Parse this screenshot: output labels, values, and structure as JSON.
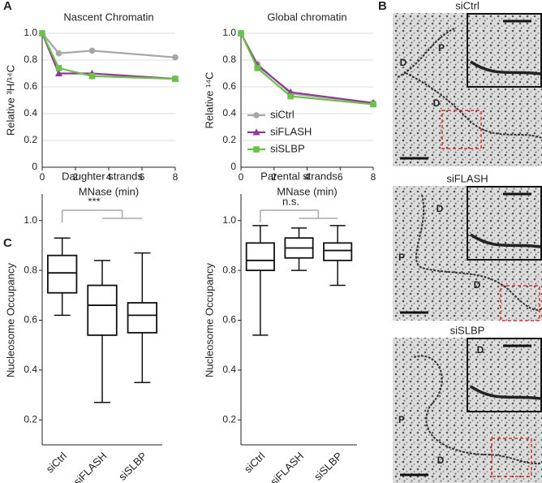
{
  "panel_labels": [
    "A",
    "B",
    "C"
  ],
  "micrographs": [
    {
      "title": "siCtrl",
      "labels": [
        "P",
        "D",
        "D"
      ]
    },
    {
      "title": "siFLASH",
      "labels": [
        "D",
        "P",
        "D"
      ]
    },
    {
      "title": "siSLBP",
      "labels": [
        "D",
        "P",
        "D"
      ]
    }
  ],
  "chart_data": [
    {
      "type": "line",
      "title": "Nascent Chromatin",
      "x_label": "MNase (min)",
      "y_label": "Relative ³H/¹⁴C",
      "x": [
        0,
        1,
        3,
        8
      ],
      "xlim": [
        0,
        8
      ],
      "xticks": [
        0,
        2,
        4,
        6,
        8
      ],
      "ylim": [
        0,
        1
      ],
      "yticks": [
        0,
        0.2,
        0.4,
        0.6,
        0.8,
        {
          "value": 1,
          "label": "1.0"
        }
      ],
      "grid": true,
      "series": [
        {
          "color": "#a6a6a6",
          "marker": "circle",
          "values": [
            1,
            0.85,
            0.87,
            0.82
          ]
        },
        {
          "color": "#8e3a96",
          "marker": "triangle",
          "values": [
            1,
            0.7,
            0.7,
            0.66
          ]
        },
        {
          "color": "#6cc04a",
          "marker": "square",
          "values": [
            1,
            0.74,
            0.68,
            0.66
          ]
        }
      ]
    },
    {
      "type": "line",
      "title": "Global chromatin",
      "x_label": "MNase (min)",
      "y_label": "Relative ¹⁴C",
      "x": [
        0,
        1,
        3,
        8
      ],
      "xlim": [
        0,
        8
      ],
      "xticks": [
        0,
        2,
        4,
        6,
        8
      ],
      "ylim": [
        0,
        1
      ],
      "yticks": [
        0,
        0.2,
        0.4,
        0.6,
        0.8,
        {
          "value": 1,
          "label": "1.0"
        }
      ],
      "grid": true,
      "legend": "right",
      "series": [
        {
          "name": "siCtrl",
          "color": "#a6a6a6",
          "marker": "circle",
          "values": [
            1,
            0.77,
            0.55,
            0.48
          ]
        },
        {
          "name": "siFLASH",
          "color": "#8e3a96",
          "marker": "triangle",
          "values": [
            1,
            0.76,
            0.56,
            0.48
          ]
        },
        {
          "name": "siSLBP",
          "color": "#6cc04a",
          "marker": "square",
          "values": [
            1,
            0.74,
            0.53,
            0.47
          ]
        }
      ]
    },
    {
      "type": "box",
      "title": "Daughter strands",
      "y_label": "Nucleosome Occupancy",
      "annotation": "***",
      "categories": [
        "siCtrl",
        "siFLASH",
        "siSLBP"
      ],
      "ylim": [
        0.1,
        1.1
      ],
      "yticks": [
        0.2,
        0.4,
        0.6,
        0.8,
        {
          "value": 1,
          "label": "1.0"
        }
      ],
      "boxes": [
        {
          "min": 0.62,
          "q1": 0.71,
          "median": 0.79,
          "q3": 0.86,
          "max": 0.93
        },
        {
          "min": 0.27,
          "q1": 0.54,
          "median": 0.66,
          "q3": 0.74,
          "max": 0.84
        },
        {
          "min": 0.35,
          "q1": 0.55,
          "median": 0.62,
          "q3": 0.67,
          "max": 0.87
        }
      ]
    },
    {
      "type": "box",
      "title": "Parental strands",
      "y_label": "Nucleosome Occupancy",
      "annotation": "n.s.",
      "categories": [
        "siCtrl",
        "siFLASH",
        "siSLBP"
      ],
      "ylim": [
        0.1,
        1.1
      ],
      "yticks": [
        0.2,
        0.4,
        0.6,
        0.8,
        {
          "value": 1,
          "label": "1.0"
        }
      ],
      "boxes": [
        {
          "min": 0.54,
          "q1": 0.8,
          "median": 0.84,
          "q3": 0.91,
          "max": 0.98
        },
        {
          "min": 0.8,
          "q1": 0.85,
          "median": 0.89,
          "q3": 0.93,
          "max": 0.97
        },
        {
          "min": 0.74,
          "q1": 0.84,
          "median": 0.88,
          "q3": 0.91,
          "max": 0.98
        }
      ]
    }
  ]
}
